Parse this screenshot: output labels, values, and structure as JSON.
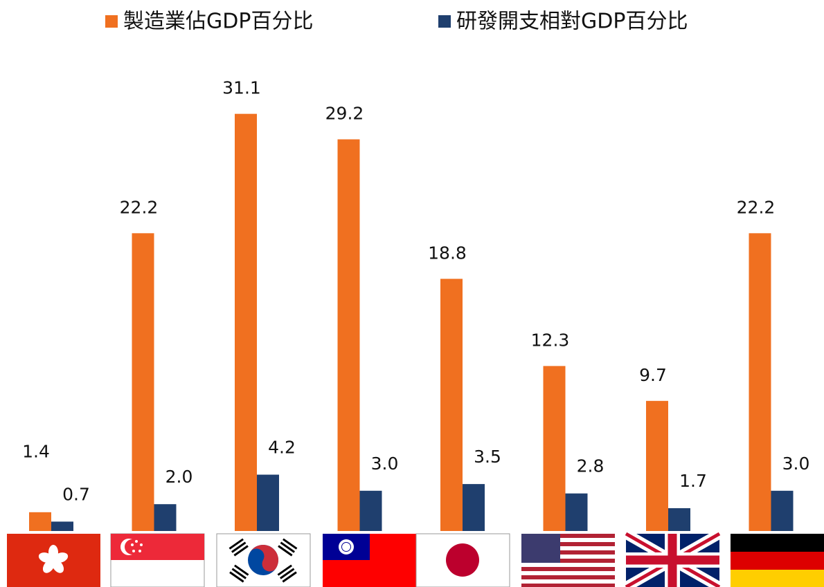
{
  "chart_data": {
    "type": "bar",
    "categories": [
      null,
      null,
      null,
      null,
      null,
      null,
      null,
      null
    ],
    "series": [
      {
        "name": "製造業佔GDP百分比",
        "color": "#f07020",
        "values": [
          1.4,
          22.2,
          31.1,
          29.2,
          18.8,
          12.3,
          9.7,
          22.2
        ]
      },
      {
        "name": "研發開支相對GDP百分比",
        "color": "#1f3f6e",
        "values": [
          0.7,
          2.0,
          4.2,
          3.0,
          3.5,
          2.8,
          1.7,
          3.0
        ],
        "value_labels": [
          "0.7",
          "2.0",
          "4.2",
          "3.0",
          "3.5",
          "2.8",
          "1.7",
          "3.0"
        ]
      }
    ]
  }
}
